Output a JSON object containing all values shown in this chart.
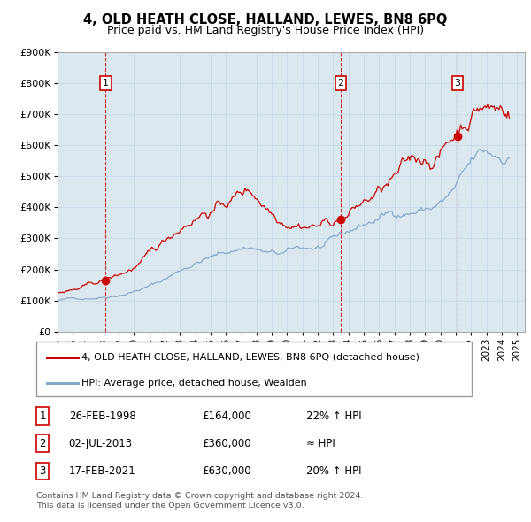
{
  "title": "4, OLD HEATH CLOSE, HALLAND, LEWES, BN8 6PQ",
  "subtitle": "Price paid vs. HM Land Registry's House Price Index (HPI)",
  "background_color": "#ffffff",
  "grid_color": "#c8d8e8",
  "plot_bg": "#dce8f0",
  "ylim": [
    0,
    900000
  ],
  "yticks": [
    0,
    100000,
    200000,
    300000,
    400000,
    500000,
    600000,
    700000,
    800000,
    900000
  ],
  "sale_dates": [
    "26-FEB-1998",
    "02-JUL-2013",
    "17-FEB-2021"
  ],
  "sale_prices": [
    "£164,000",
    "£360,000",
    "£630,000"
  ],
  "sale_notes": [
    "22% ↑ HPI",
    "≈ HPI",
    "20% ↑ HPI"
  ],
  "property_line_color": "#cc0000",
  "hpi_line_color": "#88aacc",
  "sale_marker_color": "#cc0000",
  "sale_label_border": "#cc0000",
  "xlim_start": 1995.0,
  "xlim_end": 2025.5,
  "xticks": [
    1995,
    1996,
    1997,
    1998,
    1999,
    2000,
    2001,
    2002,
    2003,
    2004,
    2005,
    2006,
    2007,
    2008,
    2009,
    2010,
    2011,
    2012,
    2013,
    2014,
    2015,
    2016,
    2017,
    2018,
    2019,
    2020,
    2021,
    2022,
    2023,
    2024,
    2025
  ],
  "legend_property": "4, OLD HEATH CLOSE, HALLAND, LEWES, BN8 6PQ (detached house)",
  "legend_hpi": "HPI: Average price, detached house, Wealden",
  "footer": "Contains HM Land Registry data © Crown copyright and database right 2024.\nThis data is licensed under the Open Government Licence v3.0.",
  "sale1_x": 1998.15,
  "sale1_y": 164000,
  "sale2_x": 2013.5,
  "sale2_y": 360000,
  "sale3_x": 2021.12,
  "sale3_y": 630000
}
